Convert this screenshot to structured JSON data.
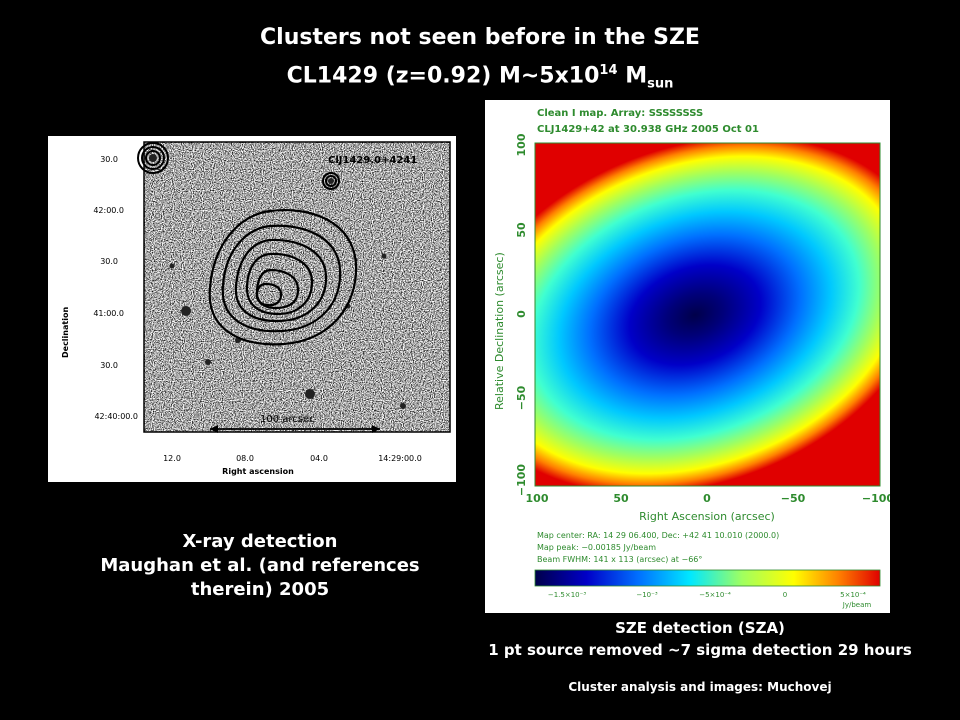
{
  "title": {
    "line1": "Clusters not seen before in the SZE",
    "line2_prefix": "CL1429 (z=0.92) M~5x10",
    "line2_exp": "14",
    "line2_M": "M",
    "line2_sub": "sun"
  },
  "xray": {
    "cluster_label": "ClJ1429.0+4241",
    "y_ticks": [
      "30.0",
      "42:00.0",
      "30.0",
      "41:00.0",
      "30.0",
      "42:40:00.0"
    ],
    "x_ticks": [
      "12.0",
      "08.0",
      "04.0",
      "14:29:00.0"
    ],
    "scale_label": "100 arcsec",
    "x_axis_label": "Right ascension",
    "y_axis_label": "Declination",
    "caption_line1": "X-ray detection",
    "caption_line2": "Maughan et al. (and references",
    "caption_line3": "therein) 2005"
  },
  "sze": {
    "header_line1": "Clean I map.  Array:  SSSSSSSS",
    "header_line2": "CLJ1429+42 at 30.938 GHz 2005 Oct 01",
    "y_ticks": [
      "100",
      "50",
      "0",
      "−50",
      "−100"
    ],
    "x_ticks": [
      "100",
      "50",
      "0",
      "−50",
      "−100"
    ],
    "x_axis_label": "Right Ascension   (arcsec)",
    "y_axis_label": "Relative Declination   (arcsec)",
    "info_line1": "Map center:  RA: 14 29 06.400,  Dec: +42 41 10.010 (2000.0)",
    "info_line2": "Map peak: −0.00185 Jy/beam",
    "info_line3": "Beam FWHM: 141 x 113 (arcsec) at −66°",
    "colorbar_ticks": [
      "−1.5×10⁻³",
      "−10⁻³",
      "−5×10⁻⁴",
      "0",
      "5×10⁻⁴"
    ],
    "colorbar_unit": "Jy/beam",
    "caption_line1": "SZE detection (SZA)",
    "caption_line2": "1 pt source removed ~7 sigma detection 29 hours",
    "credit": "Cluster analysis and images: Muchovej"
  },
  "colors": {
    "background": "#000000",
    "text": "#ffffff",
    "plot_label_green": "#2e8b2e",
    "colormap": [
      "#00004a",
      "#0000c8",
      "#0070ff",
      "#00e8ff",
      "#a0ff60",
      "#ffff00",
      "#ff8000",
      "#e00000"
    ]
  }
}
